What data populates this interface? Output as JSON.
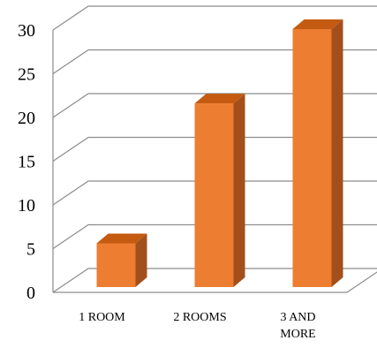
{
  "chart_data": {
    "type": "bar",
    "style": "3d-column",
    "categories": [
      "1 ROOM",
      "2 ROOMS",
      "3 AND MORE"
    ],
    "series": [
      {
        "values": [
          5,
          21,
          29.5
        ]
      }
    ],
    "y_ticks": [
      "0",
      "5",
      "10",
      "15",
      "20",
      "25",
      "30"
    ],
    "ylim": [
      0,
      30
    ],
    "grid": true,
    "legend": false,
    "colors": {
      "bar_front": "#ed7d31",
      "bar_side": "#a34f1b",
      "bar_top": "#c55a11",
      "grid": "#8c8c8c"
    }
  }
}
